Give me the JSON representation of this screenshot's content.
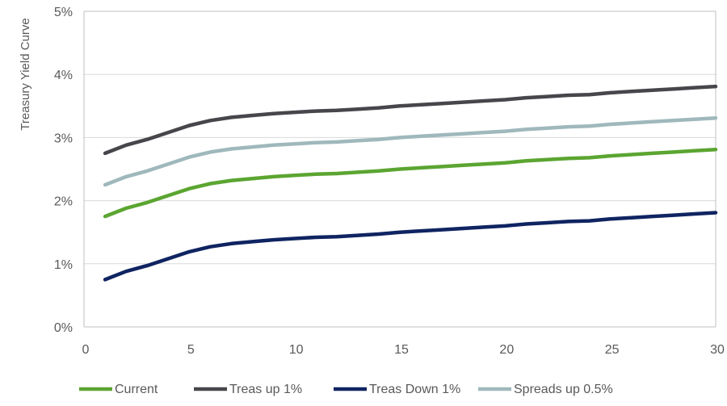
{
  "chart_data": {
    "type": "line",
    "title": "",
    "xlabel": "",
    "ylabel": "Treasury Yield Curve",
    "xlim": [
      0,
      30
    ],
    "ylim": [
      0,
      5
    ],
    "x_ticks": [
      "0",
      "5",
      "10",
      "15",
      "20",
      "25",
      "30"
    ],
    "y_ticks": [
      "0%",
      "1%",
      "2%",
      "3%",
      "4%",
      "5%"
    ],
    "grid": "horizontal",
    "legend_position": "bottom",
    "x": [
      1,
      2,
      3,
      4,
      5,
      6,
      7,
      8,
      9,
      10,
      11,
      12,
      13,
      14,
      15,
      16,
      17,
      18,
      19,
      20,
      21,
      22,
      23,
      24,
      25,
      26,
      27,
      28,
      29,
      30
    ],
    "series": [
      {
        "name": "Current",
        "color": "#5ba531",
        "values": [
          1.75,
          1.88,
          1.97,
          2.08,
          2.19,
          2.27,
          2.32,
          2.35,
          2.38,
          2.4,
          2.42,
          2.43,
          2.45,
          2.47,
          2.5,
          2.52,
          2.54,
          2.56,
          2.58,
          2.6,
          2.63,
          2.65,
          2.67,
          2.68,
          2.71,
          2.73,
          2.75,
          2.77,
          2.79,
          2.81
        ]
      },
      {
        "name": "Treas up 1%",
        "color": "#46464b",
        "values": [
          2.75,
          2.88,
          2.97,
          3.08,
          3.19,
          3.27,
          3.32,
          3.35,
          3.38,
          3.4,
          3.42,
          3.43,
          3.45,
          3.47,
          3.5,
          3.52,
          3.54,
          3.56,
          3.58,
          3.6,
          3.63,
          3.65,
          3.67,
          3.68,
          3.71,
          3.73,
          3.75,
          3.77,
          3.79,
          3.81
        ]
      },
      {
        "name": "Treas Down 1%",
        "color": "#0f2461",
        "values": [
          0.75,
          0.88,
          0.97,
          1.08,
          1.19,
          1.27,
          1.32,
          1.35,
          1.38,
          1.4,
          1.42,
          1.43,
          1.45,
          1.47,
          1.5,
          1.52,
          1.54,
          1.56,
          1.58,
          1.6,
          1.63,
          1.65,
          1.67,
          1.68,
          1.71,
          1.73,
          1.75,
          1.77,
          1.79,
          1.81
        ]
      },
      {
        "name": "Spreads up 0.5%",
        "color": "#9fb8bc",
        "values": [
          2.25,
          2.38,
          2.47,
          2.58,
          2.69,
          2.77,
          2.82,
          2.85,
          2.88,
          2.9,
          2.92,
          2.93,
          2.95,
          2.97,
          3.0,
          3.02,
          3.04,
          3.06,
          3.08,
          3.1,
          3.13,
          3.15,
          3.17,
          3.18,
          3.21,
          3.23,
          3.25,
          3.27,
          3.29,
          3.31
        ]
      }
    ]
  }
}
